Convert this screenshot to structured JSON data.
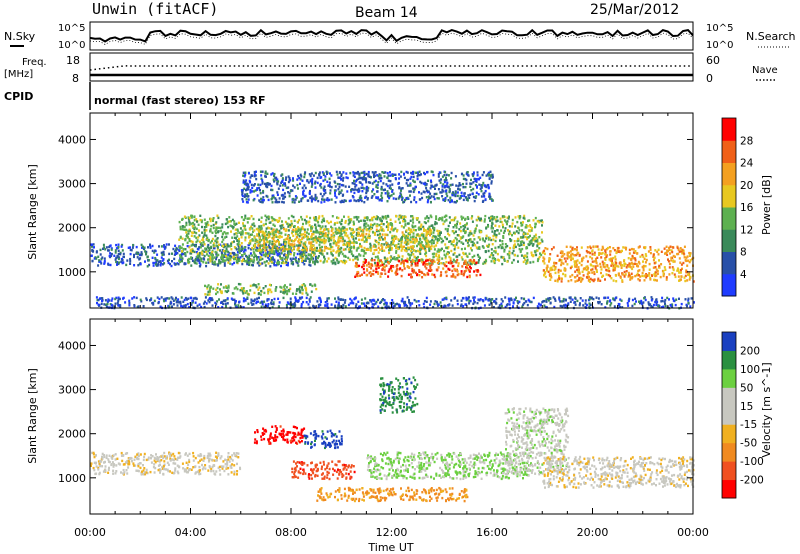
{
  "header": {
    "station": "Unwin (fitACF)",
    "beam": "Beam 14",
    "date": "25/Mar/2012"
  },
  "summary_panels": {
    "nsky_label": "N.Sky",
    "nsearch_label": "N.Search",
    "nsky_ticks": [
      "10^5",
      "10^0"
    ],
    "freq_label": "Freq.",
    "freq_unit": "[MHz]",
    "freq_ticks": [
      "18",
      "8"
    ],
    "nave_ticks": [
      "60",
      "0"
    ],
    "nave_label": "Nave",
    "cpid_label": "CPID",
    "cpid_text": "normal (fast stereo) 153 RF"
  },
  "x_axis": {
    "label": "Time UT",
    "ticks": [
      "00:00",
      "04:00",
      "08:00",
      "12:00",
      "16:00",
      "20:00",
      "00:00"
    ]
  },
  "power_panel": {
    "ylabel": "Slant Range [km]",
    "yticks": [
      "4000",
      "3000",
      "2000",
      "1000"
    ],
    "colorbar_label": "Power [dB]",
    "colorbar_ticks": [
      "28",
      "24",
      "20",
      "16",
      "12",
      "8",
      "4"
    ]
  },
  "velocity_panel": {
    "ylabel": "Slant Range [km]",
    "yticks": [
      "4000",
      "3000",
      "2000",
      "1000"
    ],
    "colorbar_label": "Velocity [m s^-1]",
    "colorbar_ticks": [
      "200",
      "100",
      "50",
      "15",
      "-15",
      "-50",
      "-100",
      "-200"
    ]
  },
  "chart_data": [
    {
      "type": "heatmap",
      "quantity": "power",
      "x": [
        0,
        24
      ],
      "ylim": [
        180,
        4600
      ],
      "color_scale": {
        "min": 0,
        "max": 32,
        "boundaries": [
          0,
          4,
          8,
          12,
          16,
          20,
          24,
          28,
          32
        ],
        "colors": [
          "#1f3cff",
          "#2850a8",
          "#3a8a5a",
          "#5db050",
          "#e8c820",
          "#f4a020",
          "#f06018",
          "#ff0000"
        ]
      },
      "echo_regions_hours_km_db": [
        {
          "t": [
            0.0,
            9.0
          ],
          "range": [
            1150,
            1650
          ],
          "power_db": 6
        },
        {
          "t": [
            3.5,
            18.0
          ],
          "range": [
            1200,
            2300
          ],
          "power_db": 14
        },
        {
          "t": [
            6.5,
            13.5
          ],
          "range": [
            1500,
            2000
          ],
          "power_db": 18
        },
        {
          "t": [
            10.5,
            15.5
          ],
          "range": [
            900,
            1300
          ],
          "power_db": 26
        },
        {
          "t": [
            18.0,
            24.0
          ],
          "range": [
            800,
            1600
          ],
          "power_db": 22
        },
        {
          "t": [
            4.5,
            9.0
          ],
          "range": [
            500,
            750
          ],
          "power_db": 14
        },
        {
          "t": [
            6.0,
            16.0
          ],
          "range": [
            2600,
            3300
          ],
          "power_db": 6
        },
        {
          "t": [
            0.0,
            24.0
          ],
          "range": [
            200,
            450
          ],
          "power_db": 5
        }
      ]
    },
    {
      "type": "heatmap",
      "quantity": "velocity",
      "x": [
        0,
        24
      ],
      "ylim": [
        180,
        4600
      ],
      "color_scale": {
        "boundaries": [
          -250,
          -200,
          -100,
          -50,
          -15,
          15,
          50,
          100,
          200,
          250
        ],
        "colors": [
          "#ff0000",
          "#f05020",
          "#f08a20",
          "#f0b020",
          "#c8c8c0",
          "#c8c8c0",
          "#6cd040",
          "#2a9040",
          "#1a40c0"
        ]
      },
      "echo_regions_hours_km_ms": [
        {
          "t": [
            0.0,
            6.0
          ],
          "range": [
            1100,
            1600
          ],
          "velocity": 0
        },
        {
          "t": [
            6.5,
            8.5
          ],
          "range": [
            1800,
            2200
          ],
          "velocity": -220
        },
        {
          "t": [
            8.5,
            10.0
          ],
          "range": [
            1700,
            2100
          ],
          "velocity": 220
        },
        {
          "t": [
            8.0,
            10.5
          ],
          "range": [
            1000,
            1400
          ],
          "velocity": -180
        },
        {
          "t": [
            9.0,
            15.0
          ],
          "range": [
            500,
            800
          ],
          "velocity": -60
        },
        {
          "t": [
            11.0,
            17.5
          ],
          "range": [
            1000,
            1600
          ],
          "velocity": 60
        },
        {
          "t": [
            16.5,
            19.0
          ],
          "range": [
            1100,
            2600
          ],
          "velocity": 30
        },
        {
          "t": [
            18.0,
            24.0
          ],
          "range": [
            800,
            1500
          ],
          "velocity": 0
        },
        {
          "t": [
            11.5,
            13.0
          ],
          "range": [
            2500,
            3300
          ],
          "velocity": 180
        }
      ]
    }
  ]
}
